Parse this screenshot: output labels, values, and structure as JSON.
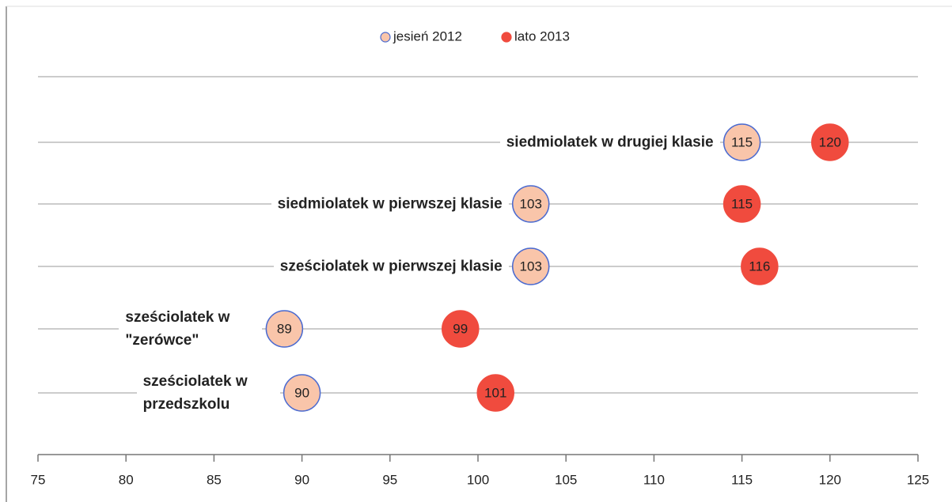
{
  "chart_data": {
    "type": "dot",
    "categories": [
      "siedmiolatek w drugiej klasie",
      "siedmiolatek w pierwszej klasie",
      "sześciolatek w pierwszej klasie",
      "sześciolatek w \"zerówce\"",
      "sześciolatek w przedszkolu"
    ],
    "series": [
      {
        "name": "jesień 2012",
        "color": "#f9c5aa",
        "edgecolor": "#4a6ad0",
        "values": [
          115,
          103,
          103,
          89,
          90
        ]
      },
      {
        "name": "lato 2013",
        "color": "#f04b3e",
        "edgecolor": "#f04b3e",
        "values": [
          120,
          115,
          116,
          99,
          101
        ]
      }
    ],
    "xlim": [
      75,
      125
    ],
    "xticks": [
      75,
      80,
      85,
      90,
      95,
      100,
      105,
      110,
      115,
      120,
      125
    ],
    "legend": "top"
  }
}
